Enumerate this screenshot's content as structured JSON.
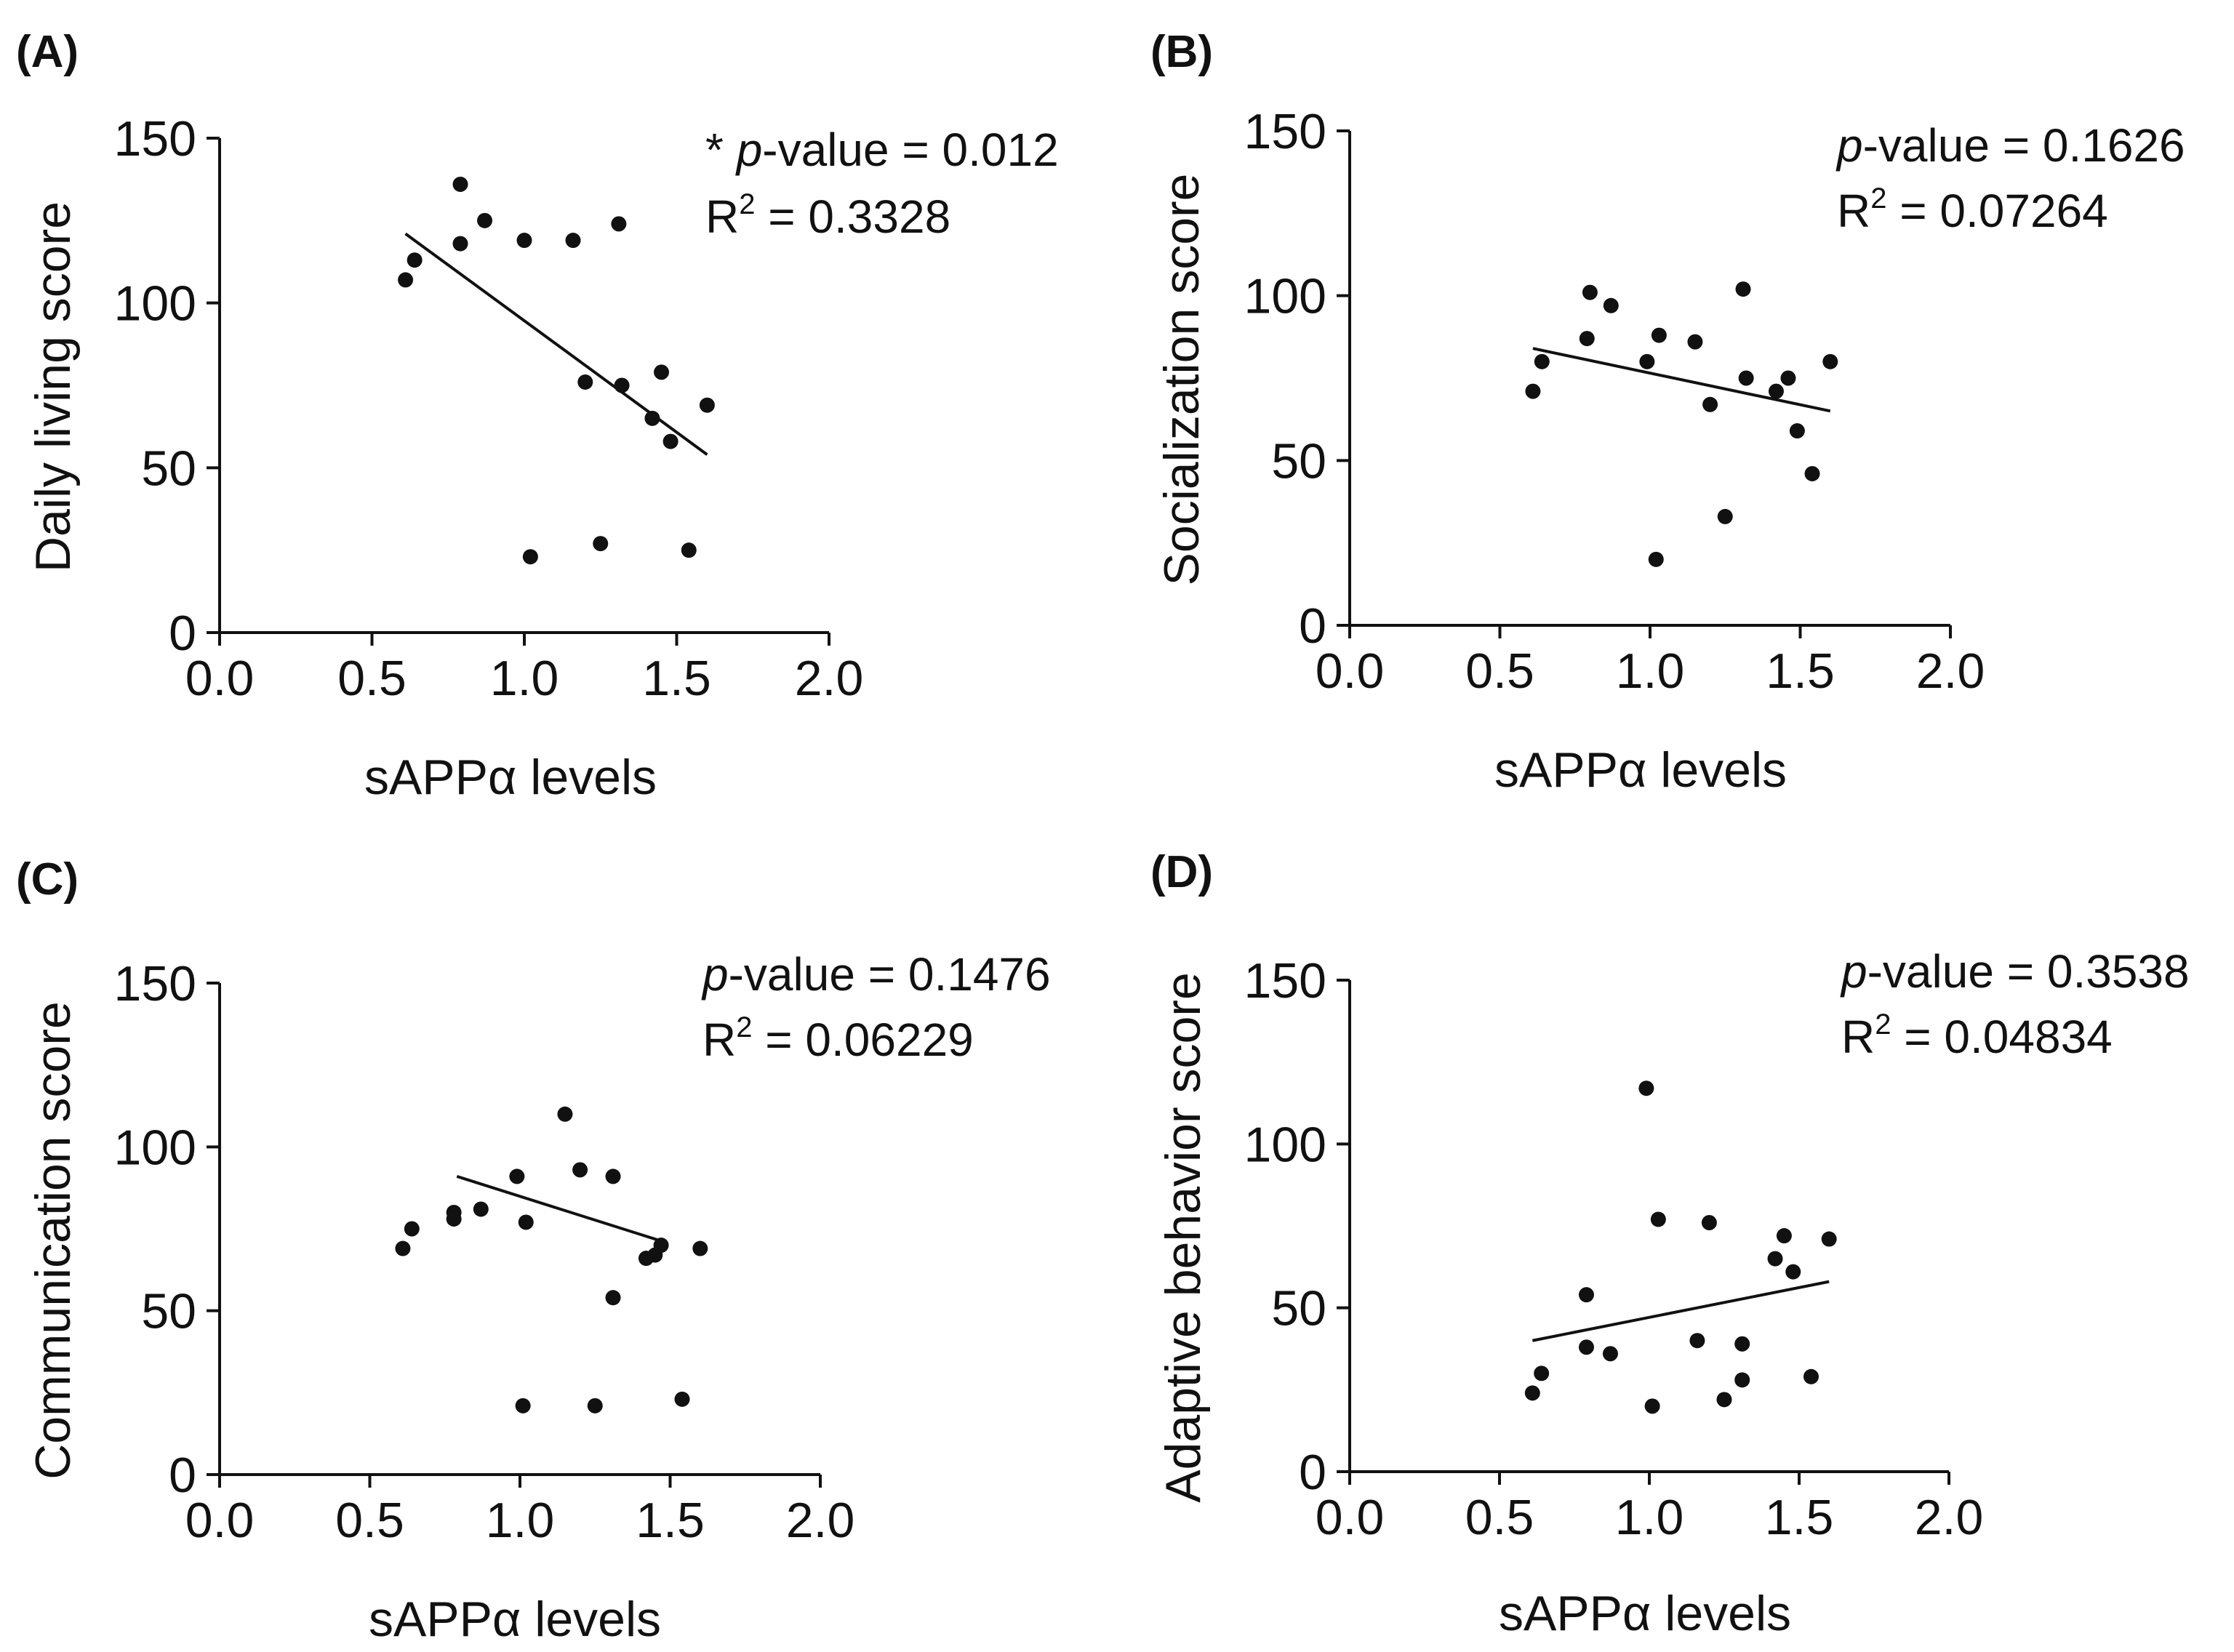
{
  "chart_data": [
    {
      "panel": "(A)",
      "type": "scatter",
      "xlabel": "sAPPα levels",
      "ylabel": "Daily living score",
      "xlim": [
        0,
        2
      ],
      "ylim": [
        0,
        150
      ],
      "xticks": [
        "0.0",
        "0.5",
        "1.0",
        "1.5",
        "2.0"
      ],
      "yticks": [
        "0",
        "50",
        "100",
        "150"
      ],
      "x": [
        0.61,
        0.64,
        0.79,
        0.79,
        0.87,
        1.0,
        1.02,
        1.16,
        1.2,
        1.25,
        1.31,
        1.32,
        1.42,
        1.45,
        1.48,
        1.54,
        1.6
      ],
      "y": [
        107,
        113,
        136,
        118,
        125,
        119,
        23,
        119,
        76,
        27,
        124,
        75,
        65,
        79,
        58,
        25,
        69
      ],
      "fit_line": {
        "x": [
          0.61,
          1.6
        ],
        "y": [
          121,
          54
        ]
      },
      "significance": "*",
      "p_label": "p",
      "p_value": "-value = 0.012",
      "r2_base": "R",
      "r2_sup": "2",
      "r2_value": " = 0.3328"
    },
    {
      "panel": "(B)",
      "type": "scatter",
      "xlabel": "sAPPα levels",
      "ylabel": "Socialization score",
      "xlim": [
        0,
        2
      ],
      "ylim": [
        0,
        150
      ],
      "xticks": [
        "0.0",
        "0.5",
        "1.0",
        "1.5",
        "2.0"
      ],
      "yticks": [
        "0",
        "50",
        "100",
        "150"
      ],
      "x": [
        0.61,
        0.64,
        0.79,
        0.8,
        0.87,
        0.99,
        1.02,
        1.03,
        1.15,
        1.2,
        1.25,
        1.31,
        1.32,
        1.42,
        1.46,
        1.49,
        1.54,
        1.6
      ],
      "y": [
        71,
        80,
        87,
        101,
        97,
        80,
        20,
        88,
        86,
        67,
        33,
        102,
        75,
        71,
        75,
        59,
        46,
        80
      ],
      "fit_line": {
        "x": [
          0.61,
          1.6
        ],
        "y": [
          84,
          65
        ]
      },
      "significance": "",
      "p_label": "p",
      "p_value": "-value = 0.1626",
      "r2_base": "R",
      "r2_sup": "2",
      "r2_value": " = 0.07264"
    },
    {
      "panel": "(C)",
      "type": "scatter",
      "xlabel": "sAPPα levels",
      "ylabel": "Communication score",
      "xlim": [
        0,
        2
      ],
      "ylim": [
        0,
        150
      ],
      "xticks": [
        "0.0",
        "0.5",
        "1.0",
        "1.5",
        "2.0"
      ],
      "yticks": [
        "0",
        "50",
        "100",
        "150"
      ],
      "x": [
        0.61,
        0.64,
        0.78,
        0.78,
        0.87,
        0.99,
        1.01,
        1.02,
        1.15,
        1.2,
        1.25,
        1.31,
        1.31,
        1.42,
        1.45,
        1.47,
        1.54,
        1.6
      ],
      "y": [
        69,
        75,
        80,
        78,
        81,
        91,
        21,
        77,
        110,
        93,
        21,
        91,
        54,
        66,
        67,
        70,
        23,
        69
      ],
      "fit_line": {
        "x": [
          0.79,
          1.48
        ],
        "y": [
          91,
          71
        ]
      },
      "significance": "",
      "p_label": "p",
      "p_value": "-value = 0.1476",
      "r2_base": "R",
      "r2_sup": "2",
      "r2_value": " = 0.06229"
    },
    {
      "panel": "(D)",
      "type": "scatter",
      "xlabel": "sAPPα levels",
      "ylabel": "Adaptive behavior score",
      "xlim": [
        0,
        2
      ],
      "ylim": [
        0,
        150
      ],
      "xticks": [
        "0.0",
        "0.5",
        "1.0",
        "1.5",
        "2.0"
      ],
      "yticks": [
        "0",
        "50",
        "100",
        "150"
      ],
      "x": [
        0.61,
        0.64,
        0.79,
        0.79,
        0.87,
        0.99,
        1.01,
        1.03,
        1.16,
        1.2,
        1.25,
        1.31,
        1.31,
        1.42,
        1.45,
        1.48,
        1.54,
        1.6
      ],
      "y": [
        24,
        30,
        38,
        54,
        36,
        117,
        20,
        77,
        40,
        76,
        22,
        39,
        28,
        65,
        72,
        61,
        29,
        71
      ],
      "fit_line": {
        "x": [
          0.61,
          1.6
        ],
        "y": [
          40,
          58
        ]
      },
      "significance": "",
      "p_label": "p",
      "p_value": "-value = 0.3538",
      "r2_base": "R",
      "r2_sup": "2",
      "r2_value": " = 0.04834"
    }
  ]
}
